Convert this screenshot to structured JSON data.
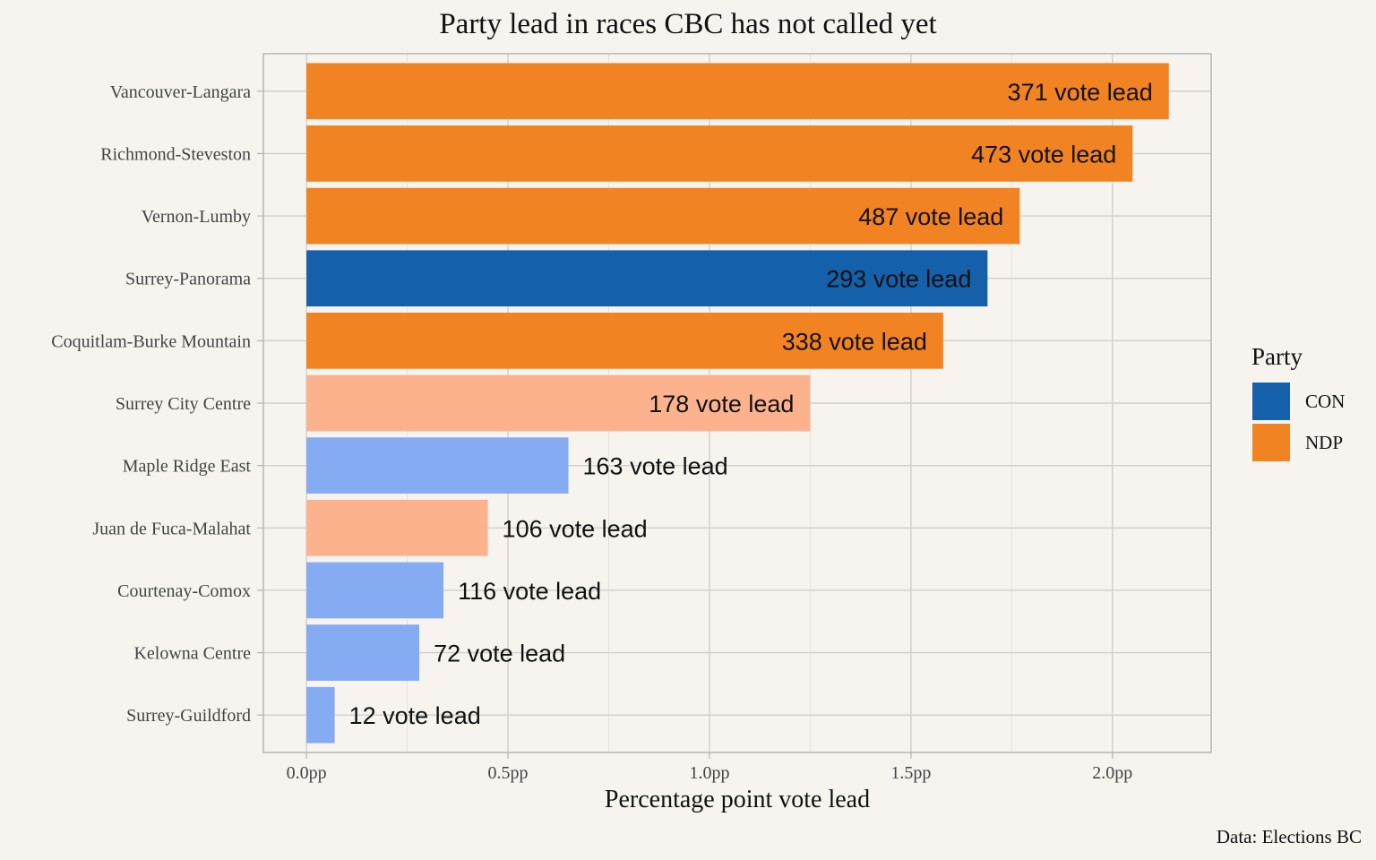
{
  "chart_data": {
    "type": "bar",
    "orientation": "horizontal",
    "title": "Party lead in races CBC has not called yet",
    "xlabel": "Percentage point vote lead",
    "ylabel": "",
    "xlim": [
      -0.107,
      2.245
    ],
    "x_ticks": [
      0.0,
      0.5,
      1.0,
      1.5,
      2.0
    ],
    "x_tick_labels": [
      "0.0pp",
      "0.5pp",
      "1.0pp",
      "1.5pp",
      "2.0pp"
    ],
    "grid": true,
    "legend": {
      "title": "Party",
      "position": "right",
      "entries": [
        {
          "label": "CON",
          "color": "#1460aa"
        },
        {
          "label": "NDP",
          "color": "#f28323"
        }
      ]
    },
    "caption": "Data: Elections BC",
    "colors": {
      "CON": "#1460aa",
      "NDP": "#f28323",
      "CON_light": "#85abf2",
      "NDP_light": "#fdb28e"
    },
    "categories": [
      "Vancouver-Langara",
      "Richmond-Steveston",
      "Vernon-Lumby",
      "Surrey-Panorama",
      "Coquitlam-Burke Mountain",
      "Surrey City Centre",
      "Maple Ridge East",
      "Juan de Fuca-Malahat",
      "Courtenay-Comox",
      "Kelowna Centre",
      "Surrey-Guildford"
    ],
    "values": [
      2.14,
      2.05,
      1.77,
      1.69,
      1.58,
      1.25,
      0.65,
      0.45,
      0.34,
      0.28,
      0.07
    ],
    "bar_labels": [
      "371 vote lead",
      "473 vote lead",
      "487 vote lead",
      "293 vote lead",
      "338 vote lead",
      "178 vote lead",
      "163 vote lead",
      "106 vote lead",
      "116 vote lead",
      "72 vote lead",
      "12 vote lead"
    ],
    "party": [
      "NDP",
      "NDP",
      "NDP",
      "CON",
      "NDP",
      "NDP",
      "CON",
      "NDP",
      "CON",
      "CON",
      "CON"
    ],
    "bar_colors": [
      "#f28323",
      "#f28323",
      "#f28323",
      "#1460aa",
      "#f28323",
      "#fdb28e",
      "#85abf2",
      "#fdb28e",
      "#85abf2",
      "#85abf2",
      "#85abf2"
    ],
    "label_inside": [
      true,
      true,
      true,
      true,
      true,
      true,
      false,
      false,
      false,
      false,
      false
    ]
  }
}
